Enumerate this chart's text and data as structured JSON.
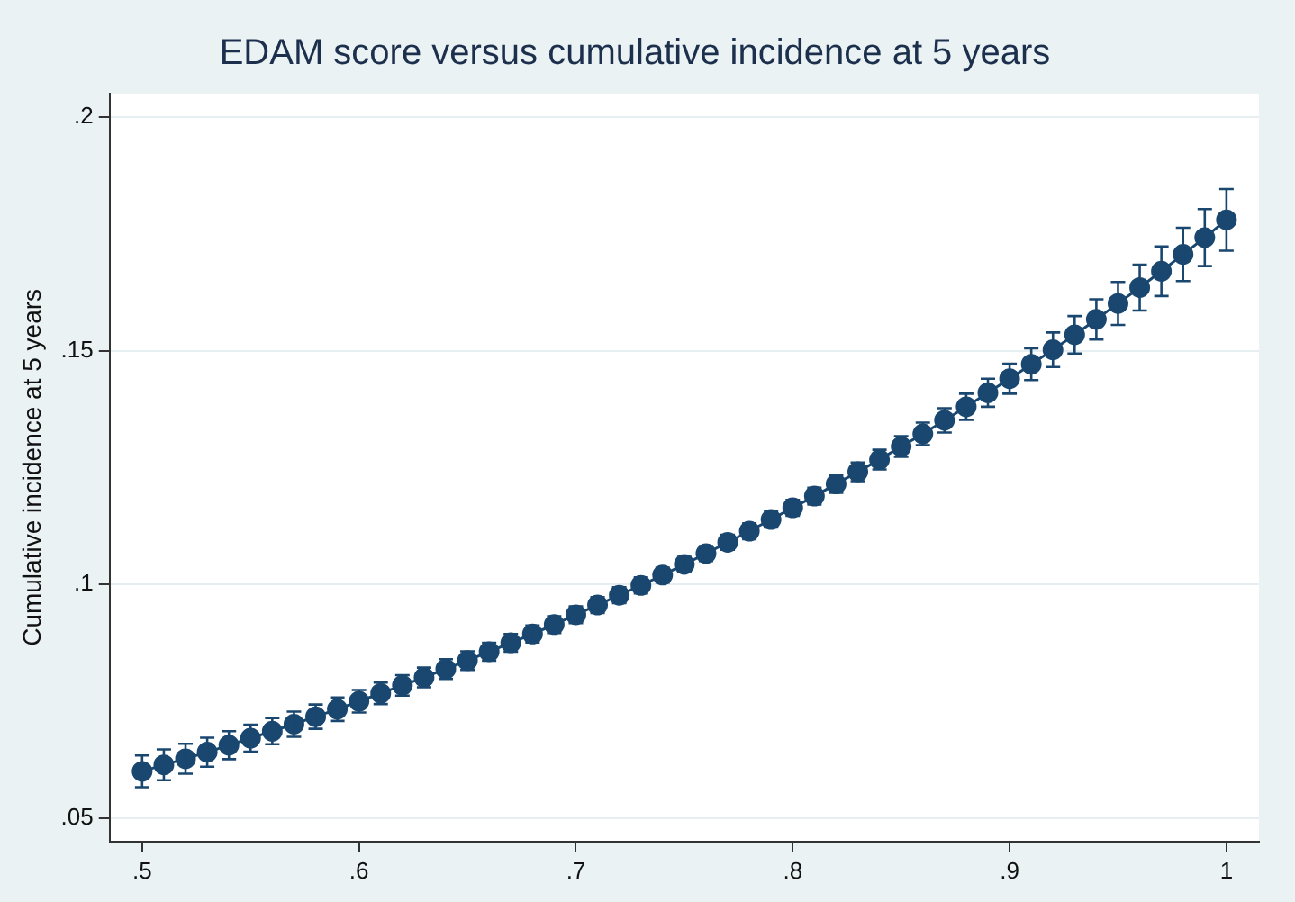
{
  "chart_data": {
    "type": "line",
    "title": "EDAM score versus cumulative incidence at 5 years",
    "ylabel": "Cumulative incidence at 5 years",
    "x": [
      0.5,
      0.51,
      0.52,
      0.53,
      0.54,
      0.55,
      0.56,
      0.57,
      0.58,
      0.59,
      0.6,
      0.61,
      0.62,
      0.63,
      0.64,
      0.65,
      0.66,
      0.67,
      0.68,
      0.69,
      0.7,
      0.71,
      0.72,
      0.73,
      0.74,
      0.75,
      0.76,
      0.77,
      0.78,
      0.79,
      0.8,
      0.81,
      0.82,
      0.83,
      0.84,
      0.85,
      0.86,
      0.87,
      0.88,
      0.89,
      0.9,
      0.91,
      0.92,
      0.93,
      0.94,
      0.95,
      0.96,
      0.97,
      0.98,
      0.99,
      1.0
    ],
    "values": [
      0.06,
      0.0614,
      0.0627,
      0.0641,
      0.0656,
      0.0671,
      0.0686,
      0.0701,
      0.0717,
      0.0733,
      0.075,
      0.0767,
      0.0784,
      0.0801,
      0.0819,
      0.0837,
      0.0856,
      0.0875,
      0.0894,
      0.0914,
      0.0935,
      0.0956,
      0.0977,
      0.0998,
      0.102,
      0.1043,
      0.1066,
      0.109,
      0.1114,
      0.1139,
      0.1164,
      0.1189,
      0.1215,
      0.1241,
      0.1267,
      0.1295,
      0.1322,
      0.1351,
      0.138,
      0.141,
      0.144,
      0.1471,
      0.1502,
      0.1534,
      0.1567,
      0.1601,
      0.1635,
      0.167,
      0.1706,
      0.1742,
      0.178
    ],
    "errors": [
      0.0034,
      0.0033,
      0.0032,
      0.0031,
      0.003,
      0.0029,
      0.0028,
      0.0027,
      0.0026,
      0.0025,
      0.0024,
      0.0023,
      0.0022,
      0.0021,
      0.0021,
      0.002,
      0.0019,
      0.0019,
      0.0018,
      0.0018,
      0.0018,
      0.0017,
      0.0017,
      0.0017,
      0.0016,
      0.0016,
      0.0016,
      0.0016,
      0.0017,
      0.0017,
      0.0017,
      0.0018,
      0.0019,
      0.002,
      0.0021,
      0.0022,
      0.0024,
      0.0026,
      0.0028,
      0.003,
      0.0032,
      0.0034,
      0.0037,
      0.004,
      0.0043,
      0.0046,
      0.0049,
      0.0053,
      0.0057,
      0.0061,
      0.0066
    ],
    "color": "#1a476f",
    "marker": "circle",
    "line_style": "solid",
    "grid": "y",
    "legend": false,
    "xlim": [
      0.485,
      1.015
    ],
    "xticks": [
      {
        "value": 0.5,
        "label": ".5"
      },
      {
        "value": 0.6,
        "label": ".6"
      },
      {
        "value": 0.7,
        "label": ".7"
      },
      {
        "value": 0.8,
        "label": ".8"
      },
      {
        "value": 0.9,
        "label": ".9"
      },
      1
    ],
    "ylim": [
      0.045,
      0.205
    ],
    "yticks": [
      {
        "value": 0.05,
        "label": ".05"
      },
      {
        "value": 0.1,
        "label": ".1"
      },
      {
        "value": 0.15,
        "label": ".15"
      },
      {
        "value": 0.2,
        "label": ".2"
      }
    ]
  }
}
